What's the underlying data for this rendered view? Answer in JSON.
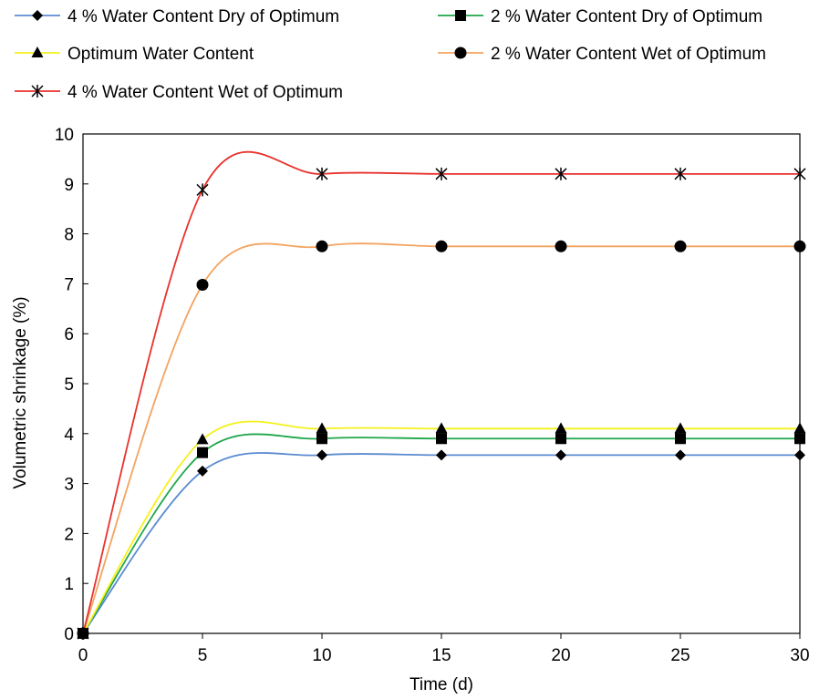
{
  "chart_data": {
    "type": "line",
    "xlabel": "Time (d)",
    "ylabel": "Volumetric shrinkage (%)",
    "xlim": [
      0,
      30
    ],
    "ylim": [
      0,
      10
    ],
    "x_ticks": [
      0,
      5,
      10,
      15,
      20,
      25,
      30
    ],
    "y_ticks": [
      0,
      1,
      2,
      3,
      4,
      5,
      6,
      7,
      8,
      9,
      10
    ],
    "grid": false,
    "legend_position": "top",
    "x": [
      0,
      5,
      10,
      15,
      20,
      25,
      30
    ],
    "series": [
      {
        "name": "4 % Water Content Dry of Optimum",
        "values": [
          0,
          3.25,
          3.57,
          3.57,
          3.57,
          3.57,
          3.57
        ],
        "color": "#5b8bd0",
        "marker": "diamond"
      },
      {
        "name": "2 % Water Content Dry of Optimum",
        "values": [
          0,
          3.62,
          3.9,
          3.9,
          3.9,
          3.9,
          3.9
        ],
        "color": "#1fa64a",
        "marker": "square"
      },
      {
        "name": "Optimum Water Content",
        "values": [
          0,
          3.88,
          4.1,
          4.1,
          4.1,
          4.1,
          4.1
        ],
        "color": "#f4f11c",
        "marker": "triangle"
      },
      {
        "name": "2 % Water Content Wet of Optimum",
        "values": [
          0,
          6.98,
          7.75,
          7.75,
          7.75,
          7.75,
          7.75
        ],
        "color": "#f4a460",
        "marker": "circle"
      },
      {
        "name": "4 % Water Content Wet of Optimum",
        "values": [
          0,
          8.88,
          9.2,
          9.2,
          9.2,
          9.2,
          9.2
        ],
        "color": "#e8322d",
        "marker": "star"
      }
    ]
  }
}
